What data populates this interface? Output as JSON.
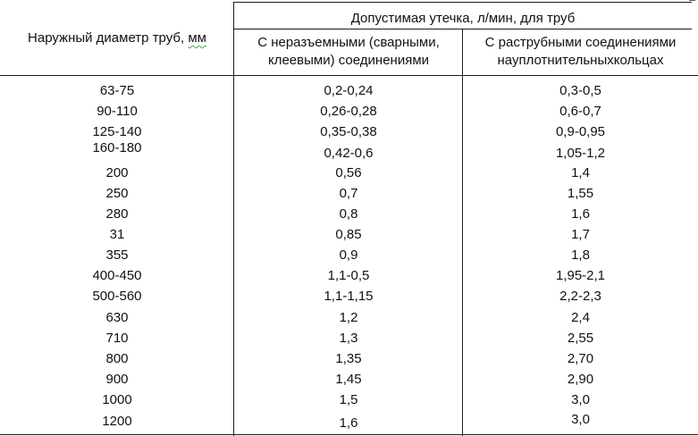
{
  "header": {
    "col1": "Наружный диаметр труб,",
    "col1_unit": "мм",
    "group": "Допустимая утечка, л/мин, для труб",
    "col2_line1": "С неразъемными (сварными,",
    "col2_line2": "клеевыми) соединениями",
    "col3_line1": "С раструбными соединениями",
    "col3_line2": "науплотнительныхкольцах"
  },
  "rows": [
    {
      "d": "63-75",
      "welded": "0,2-0,24",
      "socket": "0,3-0,5"
    },
    {
      "d": "90-110",
      "welded": "0,26-0,28",
      "socket": "0,6-0,7"
    },
    {
      "d": "125-140",
      "welded": "0,35-0,38",
      "socket": "0,9-0,95"
    },
    {
      "d": "160-180",
      "welded": "0,42-0,6",
      "socket": "1,05-1,2"
    },
    {
      "d": "200",
      "welded": "0,56",
      "socket": "1,4"
    },
    {
      "d": "250",
      "welded": "0,7",
      "socket": "1,55"
    },
    {
      "d": "280",
      "welded": "0,8",
      "socket": "1,6"
    },
    {
      "d": "31",
      "welded": "0,85",
      "socket": "1,7"
    },
    {
      "d": "355",
      "welded": "0,9",
      "socket": "1,8"
    },
    {
      "d": "400-450",
      "welded": "1,1-0,5",
      "socket": "1,95-2,1"
    },
    {
      "d": "500-560",
      "welded": "1,1-1,15",
      "socket": "2,2-2,3"
    },
    {
      "d": "630",
      "welded": "1,2",
      "socket": "2,4"
    },
    {
      "d": "710",
      "welded": "1,3",
      "socket": "2,55"
    },
    {
      "d": "800",
      "welded": "1,35",
      "socket": "2,70"
    },
    {
      "d": "900",
      "welded": "1,45",
      "socket": "2,90"
    },
    {
      "d": "1000",
      "welded": "1,5",
      "socket": "3,0"
    },
    {
      "d": "1200",
      "welded": "1,6",
      "socket": "3,0"
    }
  ]
}
